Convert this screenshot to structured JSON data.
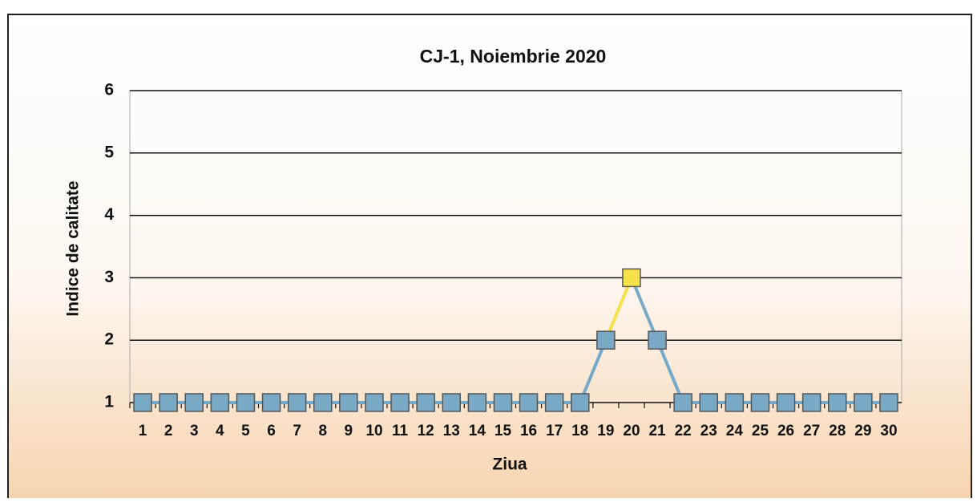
{
  "chart_data": {
    "type": "line",
    "title": "CJ-1, Noiembrie 2020",
    "xlabel": "Ziua",
    "ylabel": "Indice de calitate",
    "categories": [
      "1",
      "2",
      "3",
      "4",
      "5",
      "6",
      "7",
      "8",
      "9",
      "10",
      "11",
      "12",
      "13",
      "14",
      "15",
      "16",
      "17",
      "18",
      "19",
      "20",
      "21",
      "22",
      "23",
      "24",
      "25",
      "26",
      "27",
      "28",
      "29",
      "30"
    ],
    "series": [
      {
        "name": "CJ-1",
        "color": "#74a9c9",
        "values": [
          1,
          1,
          1,
          1,
          1,
          1,
          1,
          1,
          1,
          1,
          1,
          1,
          1,
          1,
          1,
          1,
          1,
          1,
          2,
          3,
          2,
          1,
          1,
          1,
          1,
          1,
          1,
          1,
          1,
          1
        ],
        "marker_colors": [
          "#7aa9c6",
          "#7aa9c6",
          "#7aa9c6",
          "#7aa9c6",
          "#7aa9c6",
          "#7aa9c6",
          "#7aa9c6",
          "#7aa9c6",
          "#7aa9c6",
          "#7aa9c6",
          "#7aa9c6",
          "#7aa9c6",
          "#7aa9c6",
          "#7aa9c6",
          "#7aa9c6",
          "#7aa9c6",
          "#7aa9c6",
          "#7aa9c6",
          "#7aa9c6",
          "#f7e14a",
          "#7aa9c6",
          "#7aa9c6",
          "#7aa9c6",
          "#7aa9c6",
          "#7aa9c6",
          "#7aa9c6",
          "#7aa9c6",
          "#7aa9c6",
          "#7aa9c6",
          "#7aa9c6"
        ]
      }
    ],
    "ylim": [
      1,
      6
    ],
    "yticks": [
      1,
      2,
      3,
      4,
      5,
      6
    ],
    "grid": true
  }
}
